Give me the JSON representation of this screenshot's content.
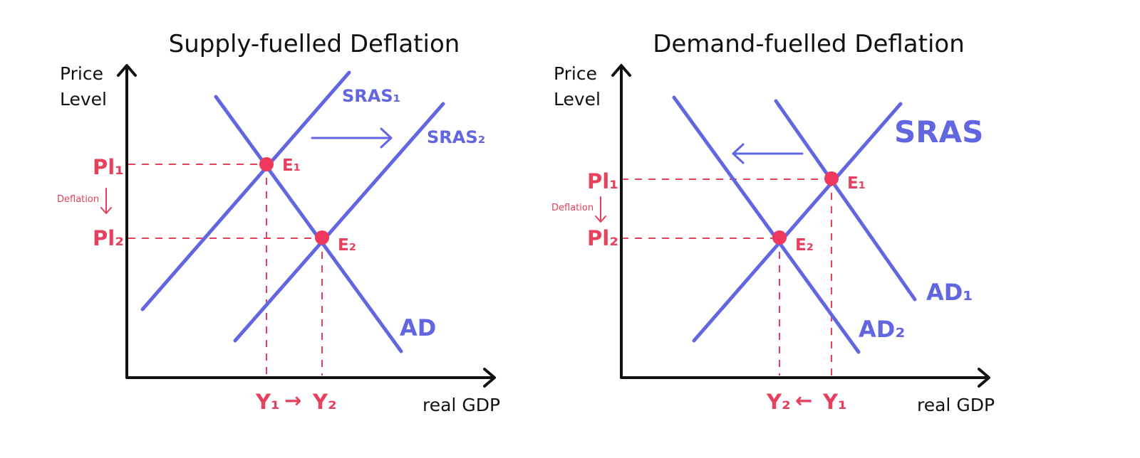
{
  "colors": {
    "curve": "#6266e0",
    "highlight": "#e5415e",
    "axis": "#111111"
  },
  "left": {
    "title": "Supply-fuelled Deflation",
    "y_axis_line1": "Price",
    "y_axis_line2": "Level",
    "x_axis": "real GDP",
    "sras1": "SRAS₁",
    "sras2": "SRAS₂",
    "ad": "AD",
    "e1": "E₁",
    "e2": "E₂",
    "pl1": "Pl₁",
    "pl2": "Pl₂",
    "deflation": "Deflation",
    "y1": "Y₁",
    "y2": "Y₂",
    "y_arrow": "→"
  },
  "right": {
    "title": "Demand-fuelled Deflation",
    "y_axis_line1": "Price",
    "y_axis_line2": "Level",
    "x_axis": "real GDP",
    "sras": "SRAS",
    "ad1": "AD₁",
    "ad2": "AD₂",
    "e1": "E₁",
    "e2": "E₂",
    "pl1": "Pl₁",
    "pl2": "Pl₂",
    "deflation": "Deflation",
    "y1": "Y₁",
    "y2": "Y₂",
    "y_arrow": "←"
  }
}
